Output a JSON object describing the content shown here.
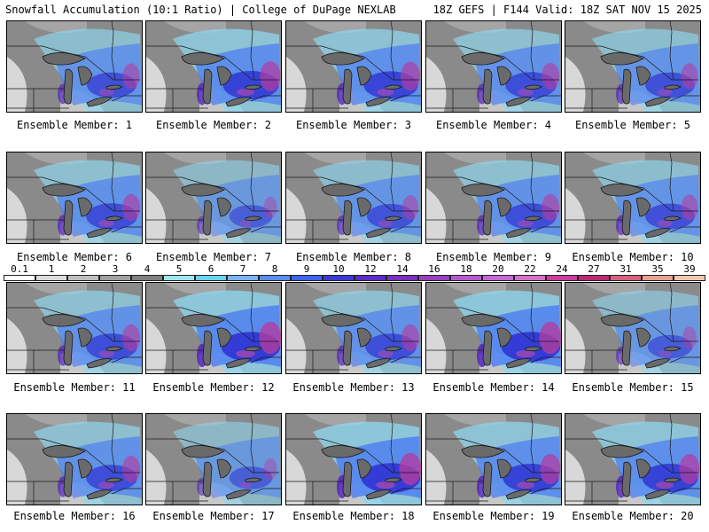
{
  "header": {
    "left": "Snowfall Accumulation (10:1 Ratio) | College of DuPage NEXLAB",
    "right": "18Z GEFS | F144 Valid: 18Z SAT NOV 15 2025"
  },
  "member_prefix": "Ensemble Member: ",
  "members": [
    {
      "n": "1",
      "cap": "Ensemble Member: 1",
      "intensity": 0.55
    },
    {
      "n": "2",
      "cap": "Ensemble Member: 2",
      "intensity": 0.75
    },
    {
      "n": "3",
      "cap": "Ensemble Member: 3",
      "intensity": 0.7
    },
    {
      "n": "4",
      "cap": "Ensemble Member: 4",
      "intensity": 0.6
    },
    {
      "n": "5",
      "cap": "Ensemble Member: 5",
      "intensity": 0.55
    },
    {
      "n": "6",
      "cap": "Ensemble Member: 6",
      "intensity": 0.6
    },
    {
      "n": "7",
      "cap": "Ensemble Member: 7",
      "intensity": 0.35
    },
    {
      "n": "8",
      "cap": "Ensemble Member: 8",
      "intensity": 0.5
    },
    {
      "n": "9",
      "cap": "Ensemble Member: 9",
      "intensity": 0.6
    },
    {
      "n": "10",
      "cap": "Ensemble Member: 10",
      "intensity": 0.55
    },
    {
      "n": "11",
      "cap": "Ensemble Member: 11",
      "intensity": 0.6
    },
    {
      "n": "12",
      "cap": "Ensemble Member: 12",
      "intensity": 0.85
    },
    {
      "n": "13",
      "cap": "Ensemble Member: 13",
      "intensity": 0.6
    },
    {
      "n": "14",
      "cap": "Ensemble Member: 14",
      "intensity": 0.85
    },
    {
      "n": "15",
      "cap": "Ensemble Member: 15",
      "intensity": 0.4
    },
    {
      "n": "16",
      "cap": "Ensemble Member: 16",
      "intensity": 0.6
    },
    {
      "n": "17",
      "cap": "Ensemble Member: 17",
      "intensity": 0.35
    },
    {
      "n": "18",
      "cap": "Ensemble Member: 18",
      "intensity": 0.85
    },
    {
      "n": "19",
      "cap": "Ensemble Member: 19",
      "intensity": 0.75
    },
    {
      "n": "20",
      "cap": "Ensemble Member: 20",
      "intensity": 0.75
    }
  ],
  "legend": {
    "labels": [
      "0.1",
      "1",
      "2",
      "3",
      "4",
      "5",
      "6",
      "7",
      "8",
      "9",
      "10",
      "12",
      "14",
      "16",
      "18",
      "20",
      "22",
      "24",
      "27",
      "31",
      "35",
      "39"
    ],
    "colors": [
      "#ffffff",
      "#dcdcdc",
      "#bebebe",
      "#a0a0a0",
      "#808080",
      "#9ee6ee",
      "#6ad2f0",
      "#7ab4f5",
      "#5a8ef0",
      "#3c64f0",
      "#3a3ad8",
      "#5a2cc8",
      "#7a30c0",
      "#9840c0",
      "#b858d0",
      "#c868d8",
      "#d870c8",
      "#cc3c9c",
      "#bc2878",
      "#d86080",
      "#e8a090",
      "#f0c8b0"
    ]
  },
  "colors": {
    "background": "#8a8a8a",
    "lake": "#6a6a6a",
    "border_line": "#1a1a1a"
  }
}
